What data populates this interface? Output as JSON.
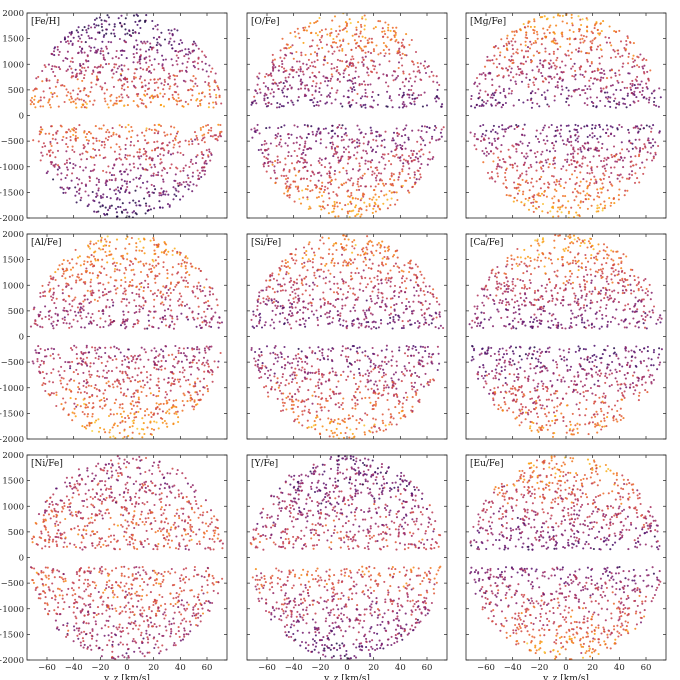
{
  "chart_data": {
    "type": "scatter",
    "layout": "3x3 grid of panels sharing axes",
    "xlabel": "v_z [km/s]",
    "ylabel": "",
    "xlim": [
      -75,
      75
    ],
    "ylim": [
      -2000,
      2000
    ],
    "xticks": [
      -60,
      -40,
      -20,
      0,
      20,
      40,
      60
    ],
    "yticks": [
      -2000,
      -1500,
      -1000,
      -500,
      0,
      500,
      1000,
      1500,
      2000
    ],
    "xtick_labels": [
      "−60",
      "−40",
      "−20",
      "0",
      "20",
      "40",
      "60"
    ],
    "ytick_labels": [
      "−2000",
      "−1500",
      "−1000",
      "−500",
      "0",
      "500",
      "1000",
      "1500",
      "2000"
    ],
    "grid": false,
    "colormap": [
      "#1b0c41",
      "#4a0c6b",
      "#781c6d",
      "#a52c60",
      "#cf4446",
      "#ed6925",
      "#fb9b06",
      "#f7d13d"
    ],
    "point_region": {
      "shape": "ellipse",
      "x_semi_axis": 73,
      "y_semi_axis": 2000,
      "empty_band": [
        -180,
        150
      ]
    },
    "panels": [
      {
        "label": "[Fe/H]",
        "upper_trend": "metal-rich (yellow) near the midplane, metal-poor (purple) at large height",
        "lower_trend": "metal-rich near midplane, purple dominant far below"
      },
      {
        "label": "[O/Fe]",
        "upper_trend": "purple near midplane, yellow at large height",
        "lower_trend": "purple near midplane, yellow far below"
      },
      {
        "label": "[Mg/Fe]",
        "upper_trend": "purple near midplane, yellow at large height",
        "lower_trend": "purple near midplane, yellow far below"
      },
      {
        "label": "[Al/Fe]",
        "upper_trend": "purple near midplane, yellow/orange at large height",
        "lower_trend": "mixed, yellow dominant far below"
      },
      {
        "label": "[Si/Fe]",
        "upper_trend": "purple near midplane, orange at large height",
        "lower_trend": "purple near midplane, orange far below"
      },
      {
        "label": "[Ca/Fe]",
        "upper_trend": "purple near midplane, orange at large height",
        "lower_trend": "dark purple near midplane, orange far below"
      },
      {
        "label": "[Ni/Fe]",
        "upper_trend": "mixed orange and purple",
        "lower_trend": "mixed orange and purple"
      },
      {
        "label": "[Y/Fe]",
        "upper_trend": "mixed, purple at large height",
        "lower_trend": "orange near midplane, purple far below"
      },
      {
        "label": "[Eu/Fe]",
        "upper_trend": "purple near midplane, orange at large height",
        "lower_trend": "purple near midplane, orange far below"
      }
    ]
  }
}
